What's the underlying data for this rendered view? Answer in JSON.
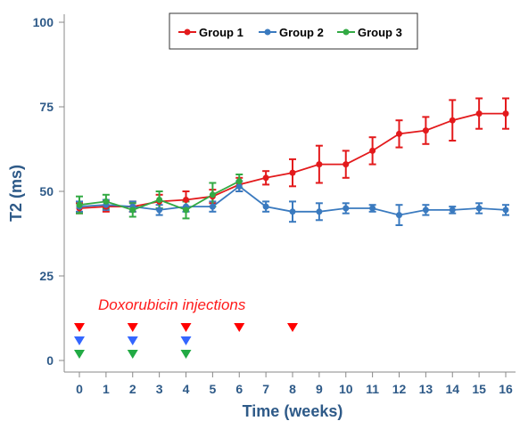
{
  "chart_data": {
    "type": "line",
    "xlabel": "Time (weeks)",
    "ylabel": "T2 (ms)",
    "xlim": [
      0,
      16
    ],
    "ylim": [
      0,
      100
    ],
    "x_ticks": [
      0,
      1,
      2,
      3,
      4,
      5,
      6,
      7,
      8,
      9,
      10,
      11,
      12,
      13,
      14,
      15,
      16
    ],
    "y_ticks": [
      0,
      25,
      50,
      75,
      100
    ],
    "grid": false,
    "legend": {
      "position": "top-center",
      "entries": [
        "Group 1",
        "Group 2",
        "Group 3"
      ]
    },
    "series": [
      {
        "name": "Group 1",
        "color": "#e31a1c",
        "x": [
          0,
          1,
          2,
          3,
          4,
          5,
          6,
          7,
          8,
          9,
          10,
          11,
          12,
          13,
          14,
          15,
          16
        ],
        "y": [
          45,
          45.5,
          45.5,
          47,
          47.5,
          48.5,
          52,
          54,
          55.5,
          58,
          58,
          62,
          67,
          68,
          71,
          73,
          73
        ],
        "err": [
          1.5,
          1.5,
          1.5,
          2,
          2.5,
          2,
          2,
          2,
          4,
          5.5,
          4,
          4,
          4,
          4,
          6,
          4.5,
          4.5
        ]
      },
      {
        "name": "Group 2",
        "color": "#3a7abf",
        "x": [
          0,
          1,
          2,
          3,
          4,
          5,
          6,
          7,
          8,
          9,
          10,
          11,
          12,
          13,
          14,
          15,
          16
        ],
        "y": [
          45.5,
          46,
          45.5,
          44.5,
          45.5,
          45.5,
          51.5,
          45.5,
          44,
          44,
          45,
          45,
          43,
          44.5,
          44.5,
          45,
          44.5
        ],
        "err": [
          1.5,
          1.5,
          1.5,
          1.5,
          1.5,
          1.5,
          1.5,
          1.5,
          3,
          2.5,
          1.5,
          1,
          3,
          1.5,
          1,
          1.5,
          1.5
        ]
      },
      {
        "name": "Group 3",
        "color": "#33aa44",
        "x": [
          0,
          1,
          2,
          3,
          4,
          5,
          6
        ],
        "y": [
          46,
          47,
          44.5,
          47.5,
          44.5,
          49,
          53
        ],
        "err": [
          2.5,
          2,
          2,
          2.5,
          2.5,
          3.5,
          2
        ]
      }
    ],
    "annotations": [
      {
        "text": "Doxorubicin injections",
        "color": "#ff1a1a",
        "groups": [
          {
            "color": "#ff0000",
            "weeks": [
              0,
              2,
              4,
              6,
              8
            ]
          },
          {
            "color": "#3366ff",
            "weeks": [
              0,
              2,
              4
            ]
          },
          {
            "color": "#22aa44",
            "weeks": [
              0,
              2,
              4
            ]
          }
        ]
      }
    ]
  }
}
